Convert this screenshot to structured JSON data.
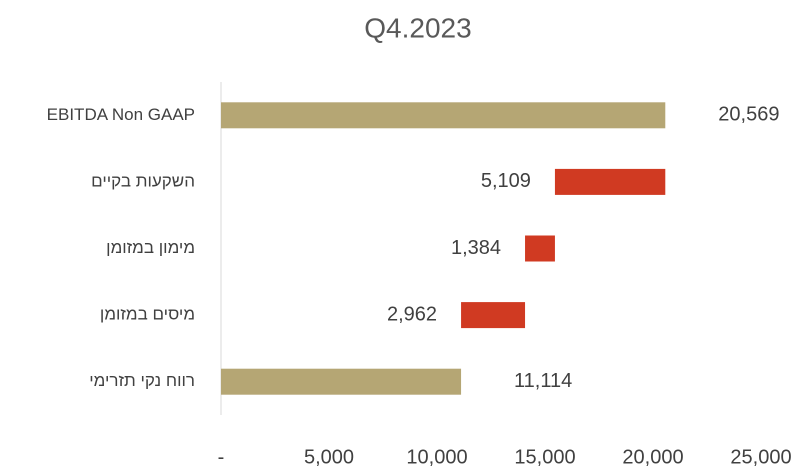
{
  "chart_data": {
    "type": "waterfall",
    "title": "Q4.2023",
    "categories": [
      "EBITDA Non GAAP",
      "השקעות בקיים",
      "מימון במזומן",
      "מיסים במזומן",
      "רווח נקי תזרימי"
    ],
    "values": [
      20569,
      5109,
      1384,
      2962,
      11114
    ],
    "value_labels": [
      "20,569",
      "5,109",
      "1,384",
      "2,962",
      "11,114"
    ],
    "measures": [
      "total",
      "decrease",
      "decrease",
      "decrease",
      "total"
    ],
    "total_color": "#b5a674",
    "decrease_color": "#d03a22",
    "xlim": [
      0,
      25000
    ],
    "xticks": [
      {
        "value": 0,
        "label": "-"
      },
      {
        "value": 5000,
        "label": "5,000"
      },
      {
        "value": 10000,
        "label": "10,000"
      },
      {
        "value": 15000,
        "label": "15,000"
      },
      {
        "value": 20000,
        "label": "20,000"
      },
      {
        "value": 25000,
        "label": "25,000"
      }
    ],
    "grid": false
  }
}
